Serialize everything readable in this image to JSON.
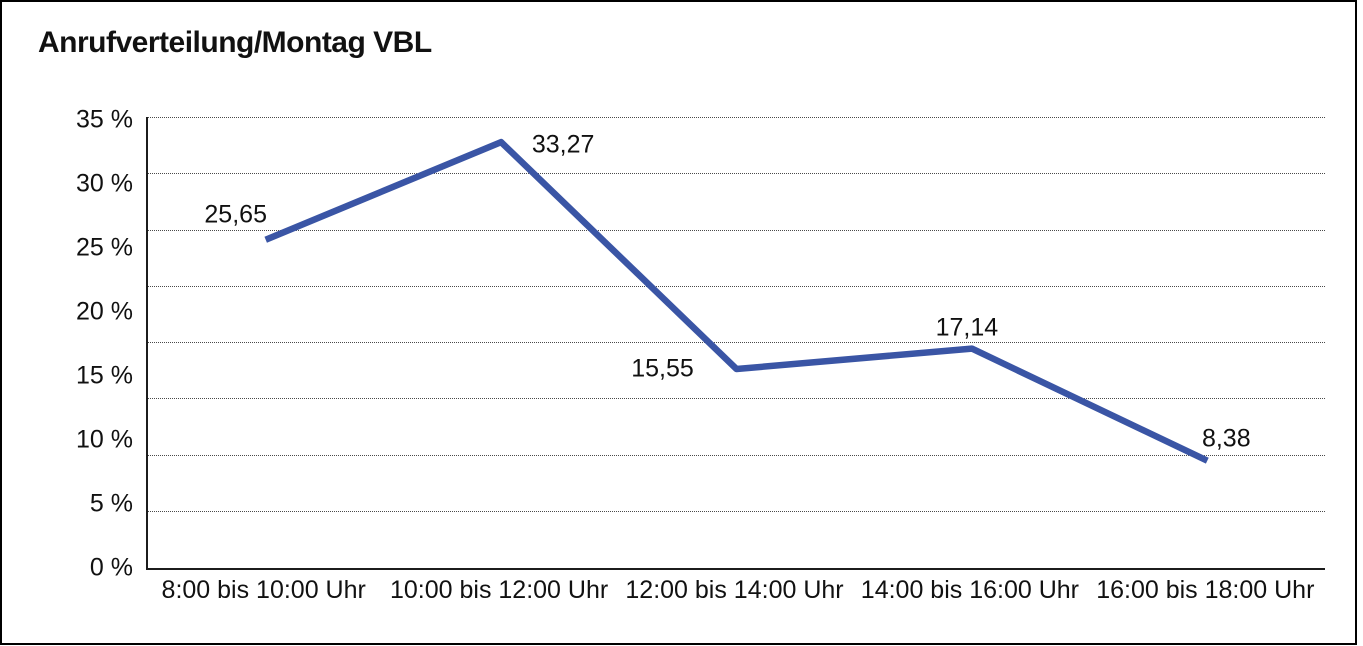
{
  "title": "Anrufverteilung/Montag VBL",
  "chart_data": {
    "type": "line",
    "title": "Anrufverteilung/Montag VBL",
    "categories": [
      "8:00 bis 10:00 Uhr",
      "10:00 bis 12:00 Uhr",
      "12:00 bis 14:00 Uhr",
      "14:00 bis 16:00 Uhr",
      "16:00 bis 18:00 Uhr"
    ],
    "series": [
      {
        "name": "Anrufverteilung Montag VBL",
        "values": [
          25.65,
          33.27,
          15.55,
          17.14,
          8.38
        ],
        "value_labels": [
          "25,65",
          "33,27",
          "15,55",
          "17,14",
          "8,38"
        ]
      }
    ],
    "xlabel": "",
    "ylabel": "",
    "ylim": [
      0,
      35
    ],
    "y_tick_labels": [
      "35 %",
      "30 %",
      "25 %",
      "20 %",
      "15 %",
      "10 %",
      "5 %",
      "0 %"
    ],
    "grid": "horizontal-dotted",
    "legend": "none",
    "line_color": "#3A55A5",
    "axis_color": "#1c1c1c",
    "background_color": "#ffffff",
    "border_color": "#000000"
  }
}
